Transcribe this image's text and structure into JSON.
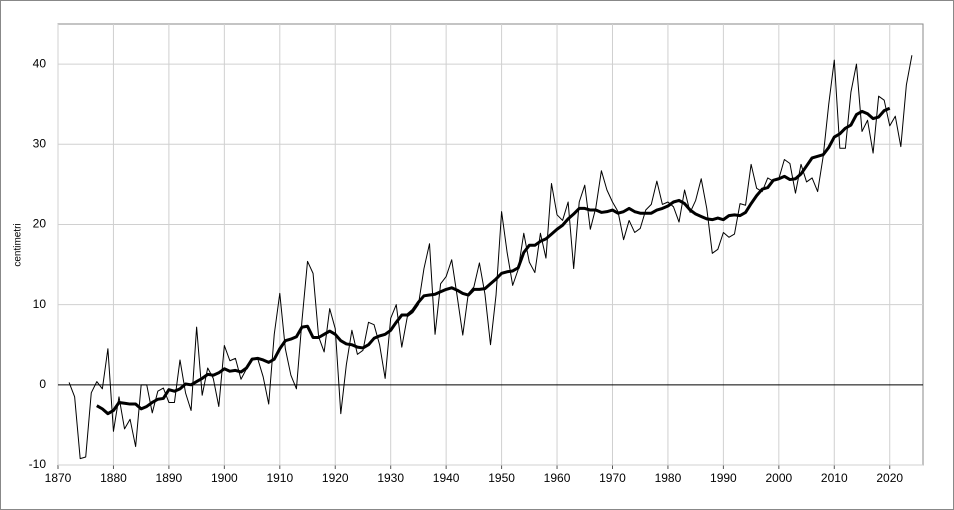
{
  "chart_data": {
    "type": "line",
    "y_label": "centimetri",
    "x": [
      1872,
      1873,
      1874,
      1875,
      1876,
      1877,
      1878,
      1879,
      1880,
      1881,
      1882,
      1883,
      1884,
      1885,
      1886,
      1887,
      1888,
      1889,
      1890,
      1891,
      1892,
      1893,
      1894,
      1895,
      1896,
      1897,
      1898,
      1899,
      1900,
      1901,
      1902,
      1903,
      1904,
      1905,
      1906,
      1907,
      1908,
      1909,
      1910,
      1911,
      1912,
      1913,
      1914,
      1915,
      1916,
      1917,
      1918,
      1919,
      1920,
      1921,
      1922,
      1923,
      1924,
      1925,
      1926,
      1927,
      1928,
      1929,
      1930,
      1931,
      1932,
      1933,
      1934,
      1935,
      1936,
      1937,
      1938,
      1939,
      1940,
      1941,
      1942,
      1943,
      1944,
      1945,
      1946,
      1947,
      1948,
      1949,
      1950,
      1951,
      1952,
      1953,
      1954,
      1955,
      1956,
      1957,
      1958,
      1959,
      1960,
      1961,
      1962,
      1963,
      1964,
      1965,
      1966,
      1967,
      1968,
      1969,
      1970,
      1971,
      1972,
      1973,
      1974,
      1975,
      1976,
      1977,
      1978,
      1979,
      1980,
      1981,
      1982,
      1983,
      1984,
      1985,
      1986,
      1987,
      1988,
      1989,
      1990,
      1991,
      1992,
      1993,
      1994,
      1995,
      1996,
      1997,
      1998,
      1999,
      2000,
      2001,
      2002,
      2003,
      2004,
      2005,
      2006,
      2007,
      2008,
      2009,
      2010,
      2011,
      2012,
      2013,
      2014,
      2015,
      2016,
      2017,
      2018,
      2019,
      2020,
      2021,
      2022,
      2023,
      2024
    ],
    "series": [
      {
        "color": "#000000",
        "width": 1,
        "values": [
          0.3,
          -1.5,
          -9.2,
          -9,
          -1,
          0.4,
          -0.5,
          4.5,
          -5.8,
          -1.5,
          -5.5,
          -4.3,
          -7.7,
          0,
          0,
          -3.5,
          -0.8,
          -0.4,
          -2.2,
          -2.2,
          3.1,
          -1,
          -3.2,
          7.2,
          -1.3,
          2.1,
          0.8,
          -2.7,
          4.9,
          3,
          3.3,
          0.7,
          2,
          3.3,
          3.3,
          1,
          -2.4,
          6.3,
          11.4,
          4.5,
          1.2,
          -0.5,
          8,
          15.4,
          13.9,
          6,
          4.1,
          9.5,
          7,
          -3.6,
          2.5,
          6.8,
          3.8,
          4.3,
          7.8,
          7.5,
          5,
          0.8,
          8.3,
          10,
          4.7,
          8.5,
          9,
          10,
          14.5,
          17.6,
          6.3,
          12.6,
          13.5,
          15.6,
          11,
          6.2,
          11.4,
          12.2,
          15.2,
          11.3,
          5,
          11.2,
          21.6,
          16.5,
          12.4,
          14.4,
          18.9,
          15.3,
          14,
          18.9,
          15.8,
          25.1,
          21.2,
          20.5,
          22.8,
          14.5,
          22.8,
          24.9,
          19.4,
          22.1,
          26.7,
          24.3,
          22.8,
          21.6,
          18.1,
          20.5,
          19,
          19.5,
          21.8,
          22.5,
          25.4,
          22.5,
          22.8,
          22.2,
          20.3,
          24.3,
          21.5,
          23,
          25.7,
          22,
          16.4,
          16.9,
          19,
          18.4,
          18.8,
          22.6,
          22.4,
          27.5,
          24.5,
          24.1,
          25.8,
          25.4,
          25.7,
          28.1,
          27.6,
          23.9,
          27.5,
          25.3,
          25.8,
          24.1,
          28.5,
          35,
          40.5,
          29.5,
          29.5,
          36.5,
          40,
          31.6,
          33,
          28.9,
          36,
          35.5,
          32.3,
          33.5,
          29.7,
          37.4,
          41.1
        ]
      },
      {
        "color": "#000000",
        "width": 3,
        "values": [
          null,
          null,
          null,
          null,
          null,
          -2.6,
          -3,
          -3.6,
          -3.2,
          -2.2,
          -2.3,
          -2.4,
          -2.4,
          -3,
          -2.7,
          -2.2,
          -1.8,
          -1.7,
          -0.6,
          -0.8,
          -0.5,
          0.1,
          0,
          0.4,
          0.8,
          1.3,
          1.2,
          1.5,
          2,
          1.7,
          1.8,
          1.6,
          2.1,
          3.2,
          3.3,
          3.1,
          2.8,
          3.2,
          4.5,
          5.5,
          5.7,
          6,
          7.2,
          7.3,
          5.9,
          5.9,
          6.3,
          6.7,
          6.3,
          5.5,
          5.1,
          5,
          4.7,
          4.6,
          5,
          5.8,
          6.1,
          6.3,
          6.8,
          7.8,
          8.7,
          8.7,
          9.3,
          10.3,
          11.1,
          11.2,
          11.3,
          11.6,
          11.9,
          12.1,
          11.8,
          11.4,
          11.2,
          11.9,
          11.9,
          12,
          12.6,
          13.2,
          13.9,
          14.1,
          14.2,
          14.6,
          16.5,
          17.4,
          17.4,
          17.9,
          18.2,
          18.8,
          19.4,
          19.9,
          20.7,
          21.3,
          22,
          22,
          21.8,
          21.8,
          21.5,
          21.6,
          21.8,
          21.4,
          21.6,
          22,
          21.6,
          21.4,
          21.4,
          21.4,
          21.8,
          22,
          22.3,
          22.8,
          23,
          22.6,
          21.8,
          21.3,
          21,
          20.7,
          20.6,
          20.8,
          20.6,
          21.1,
          21.2,
          21.1,
          21.5,
          22.6,
          23.6,
          24.4,
          24.6,
          25.5,
          25.7,
          26,
          25.6,
          25.7,
          26.3,
          27.3,
          28.3,
          28.5,
          28.7,
          29.6,
          30.9,
          31.3,
          32,
          32.4,
          33.7,
          34.1,
          33.8,
          33.2,
          33.4,
          34.2,
          34.5,
          null,
          null,
          null,
          null
        ]
      }
    ],
    "xlim": [
      1870,
      2026
    ],
    "xticks": [
      1870,
      1880,
      1890,
      1900,
      1910,
      1920,
      1930,
      1940,
      1950,
      1960,
      1970,
      1980,
      1990,
      2000,
      2010,
      2020
    ],
    "ylim": [
      -10,
      45
    ],
    "yticks": [
      -10,
      0,
      10,
      20,
      30,
      40
    ],
    "grid": true
  }
}
